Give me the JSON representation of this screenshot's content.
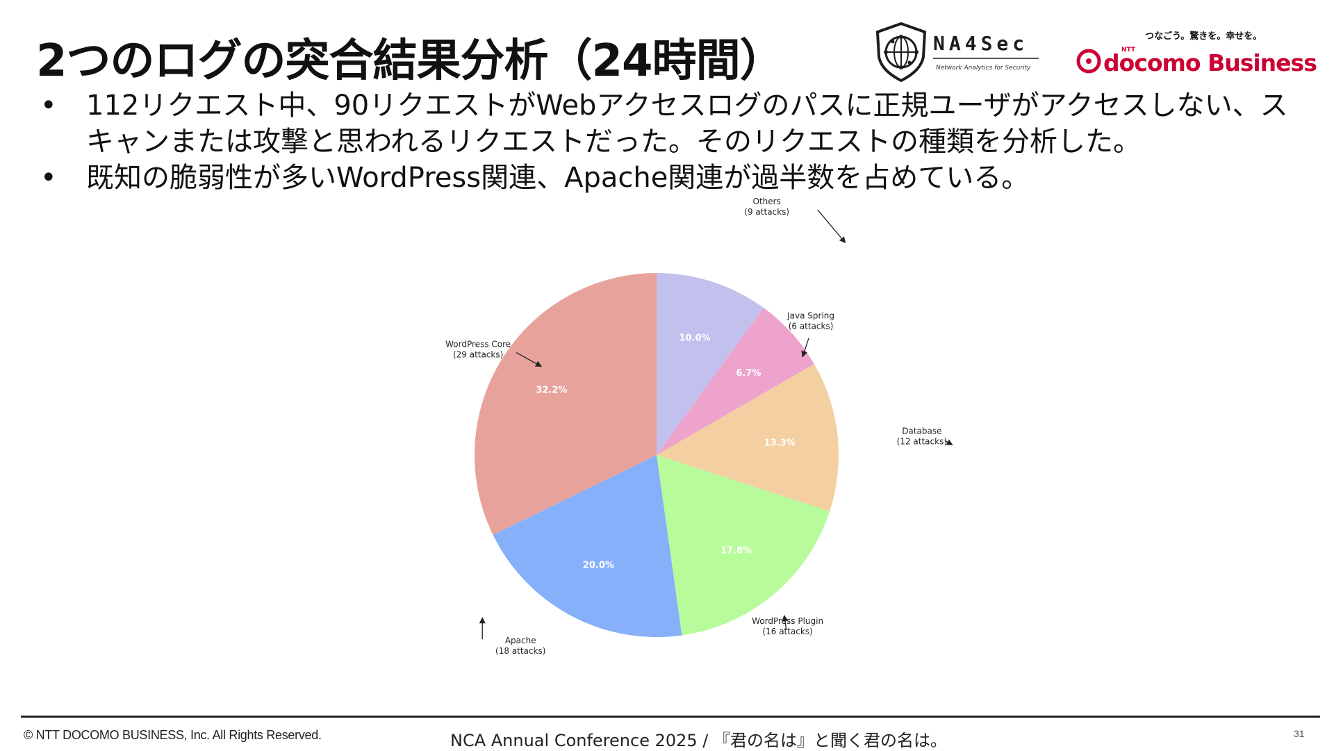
{
  "slide": {
    "title": "2つのログの突合結果分析（24時間）",
    "bullets": [
      "112リクエスト中、90リクエストがWebアクセスログのパスに正規ユーザがアクセスしない、スキャンまたは攻撃と思われるリクエストだった。そのリクエストの種類を分析した。",
      "既知の脆弱性が多いWordPress関連、Apache関連が過半数を占めている。"
    ],
    "bullet_symbol": "•"
  },
  "logos": {
    "na4sec_name": "NA4Sec",
    "na4sec_tagline": "Network Analytics for Security",
    "docomo_slogan": "つなごう。驚きを。幸せを。",
    "docomo_ntt": "NTT",
    "docomo_name": "docomo Business",
    "icons": [
      "na4sec-shield-logo",
      "docomo-logo-mark"
    ]
  },
  "footer": {
    "copyright": "© NTT DOCOMO BUSINESS, Inc. All Rights Reserved.",
    "conference": "NCA Annual Conference 2025 / 『君の名は』と聞く君の名は。",
    "page_number": "31"
  },
  "chart_data": {
    "type": "pie",
    "start_angle": 90,
    "direction": "clockwise",
    "slices": [
      {
        "label": "Others",
        "sublabel": "(9 attacks)",
        "value": 9,
        "percent_label": "10.0%",
        "color": "#c2c0ec"
      },
      {
        "label": "Java Spring",
        "sublabel": "(6 attacks)",
        "value": 6,
        "percent_label": "6.7%",
        "color": "#eea3cc"
      },
      {
        "label": "Database",
        "sublabel": "(12 attacks)",
        "value": 12,
        "percent_label": "13.3%",
        "color": "#f3cfa1"
      },
      {
        "label": "WordPress Plugin",
        "sublabel": "(16 attacks)",
        "value": 16,
        "percent_label": "17.8%",
        "color": "#b8fb9b"
      },
      {
        "label": "Apache",
        "sublabel": "(18 attacks)",
        "value": 18,
        "percent_label": "20.0%",
        "color": "#86b0fa"
      },
      {
        "label": "WordPress Core",
        "sublabel": "(29 attacks)",
        "value": 29,
        "percent_label": "32.2%",
        "color": "#e8a29c"
      }
    ]
  }
}
